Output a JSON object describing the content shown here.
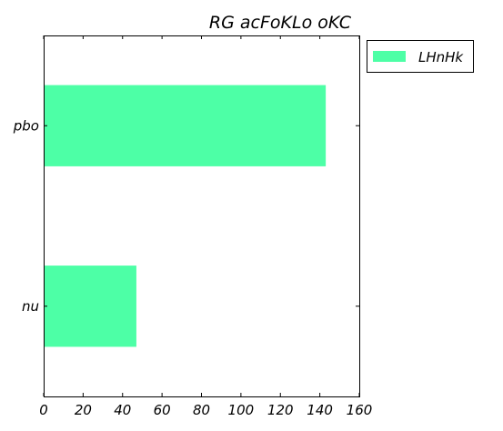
{
  "chart_data": {
    "type": "bar",
    "orientation": "horizontal",
    "title": "RG acFoKLo oKC",
    "xlabel": "",
    "ylabel": "",
    "categories": [
      "nu",
      "pbo"
    ],
    "series": [
      {
        "name": "LHnHk",
        "values": [
          47,
          143
        ],
        "color": "#4dffa6"
      }
    ],
    "xlim": [
      0,
      160
    ],
    "xticks": [
      0,
      20,
      40,
      60,
      80,
      100,
      120,
      140,
      160
    ],
    "grid": false,
    "legend_position": "outside-top-right"
  }
}
